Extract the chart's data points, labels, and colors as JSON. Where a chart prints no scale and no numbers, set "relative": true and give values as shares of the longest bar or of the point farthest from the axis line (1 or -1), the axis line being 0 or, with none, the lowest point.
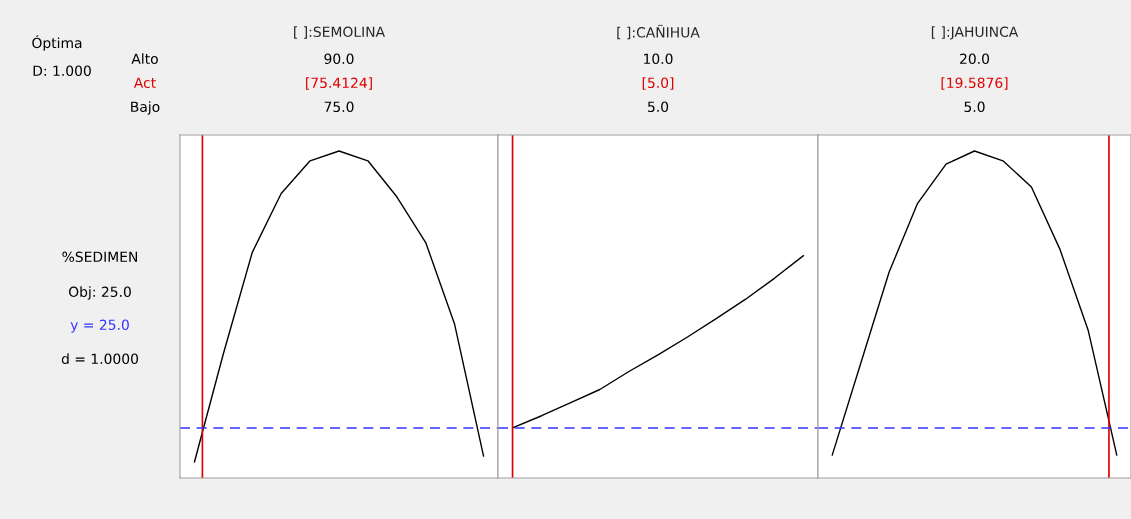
{
  "chart_data": [
    {
      "type": "line",
      "title": "[ ]:SEMOLINA",
      "relative": true,
      "color": "#000000",
      "categories": [
        null,
        null,
        null,
        null,
        null,
        null,
        null,
        null,
        null,
        null,
        null
      ],
      "values": [
        0.049,
        0.38,
        0.69,
        0.87,
        0.97,
        1.0,
        0.97,
        0.86,
        0.72,
        0.47,
        0.067
      ],
      "annotations": [
        "90.0",
        "[75.4124]",
        "75.0"
      ],
      "ref_lines": [
        {
          "axis": "y",
          "value": 0.153,
          "color": "#3333ff",
          "line_style": "dashed"
        }
      ]
    },
    {
      "type": "line",
      "title": "[ ]:CAÑIHUA",
      "relative": true,
      "color": "#000000",
      "categories": [
        null,
        null,
        null,
        null,
        null,
        null,
        null,
        null,
        null,
        null,
        null
      ],
      "values": [
        0.225,
        0.28,
        0.339,
        0.398,
        0.479,
        0.554,
        0.633,
        0.717,
        0.803,
        0.898,
        1.0
      ],
      "annotations": [
        "10.0",
        "[5.0]",
        "5.0"
      ],
      "ref_lines": [
        {
          "axis": "y",
          "value": 0.225,
          "color": "#3333ff",
          "line_style": "dashed"
        }
      ]
    },
    {
      "type": "line",
      "title": "[ ]:JAHUINCA",
      "relative": true,
      "color": "#000000",
      "categories": [
        null,
        null,
        null,
        null,
        null,
        null,
        null,
        null,
        null,
        null,
        null
      ],
      "values": [
        0.07,
        0.35,
        0.63,
        0.84,
        0.96,
        1.0,
        0.97,
        0.89,
        0.7,
        0.45,
        0.07
      ],
      "annotations": [
        "20.0",
        "[19.5876]",
        "5.0"
      ],
      "ref_lines": [
        {
          "axis": "y",
          "value": 0.153,
          "color": "#3333ff",
          "line_style": "dashed"
        }
      ]
    },
    {
      "type": "other",
      "annotations": [
        "Óptima",
        "D: 1.000",
        "Alto",
        "Act",
        "Bajo",
        "%SEDIMEN",
        "Obj: 25.0",
        "y = 25.0",
        "d = 1.0000"
      ]
    }
  ]
}
